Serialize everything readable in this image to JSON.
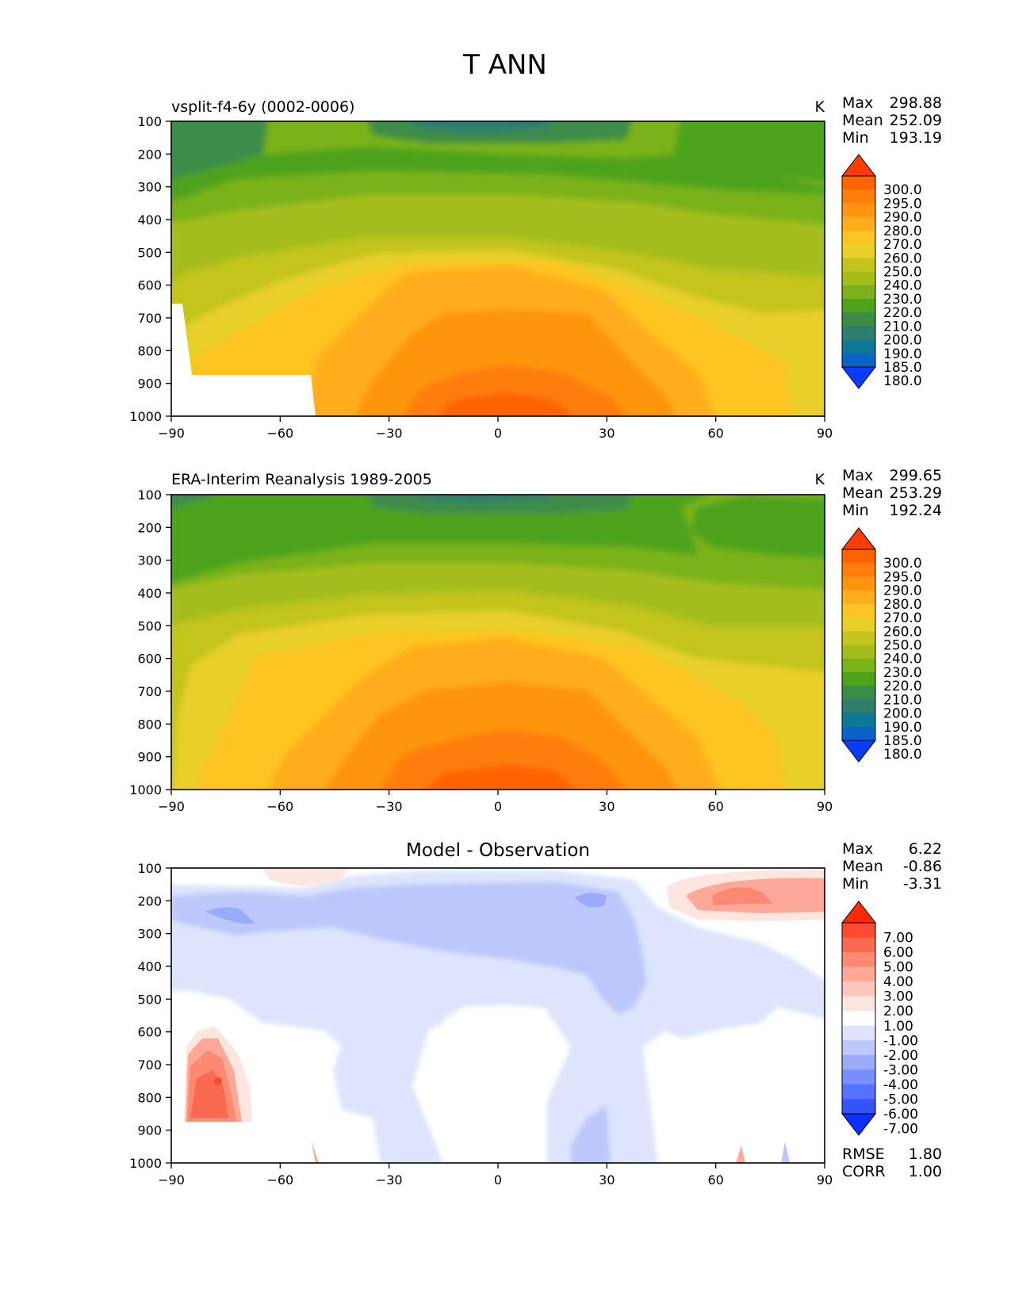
{
  "figure_title": "T ANN",
  "chart_data": [
    {
      "type": "heatmap",
      "title": "vsplit-f4-6y (0002-0006)",
      "units": "K",
      "stats": [
        {
          "label": "Max",
          "value": "298.88"
        },
        {
          "label": "Mean",
          "value": "252.09"
        },
        {
          "label": "Min",
          "value": "193.19"
        }
      ],
      "x_ticks": [
        "−90",
        "−60",
        "−30",
        "0",
        "30",
        "60",
        "90"
      ],
      "y_ticks": [
        "100",
        "200",
        "300",
        "400",
        "500",
        "600",
        "700",
        "800",
        "900",
        "1000"
      ],
      "xlim": [
        -90,
        90
      ],
      "ylim": [
        1000,
        100
      ],
      "colorbar_levels": [
        "300.0",
        "295.0",
        "290.0",
        "280.0",
        "270.0",
        "260.0",
        "250.0",
        "240.0",
        "230.0",
        "220.0",
        "210.0",
        "200.0",
        "190.0",
        "185.0",
        "180.0"
      ],
      "colorbar_colors": [
        "#ff3d00",
        "#ff6300",
        "#ff7d0a",
        "#ff9410",
        "#ffad1a",
        "#fdc423",
        "#e8cf2a",
        "#c3c41e",
        "#a4bd1a",
        "#7bb21a",
        "#4da31a",
        "#3c8c48",
        "#2e7e70",
        "#0e7896",
        "#0a64c8",
        "#0a3cff"
      ]
    },
    {
      "type": "heatmap",
      "title": "ERA-Interim Reanalysis 1989-2005",
      "units": "K",
      "stats": [
        {
          "label": "Max",
          "value": "299.65"
        },
        {
          "label": "Mean",
          "value": "253.29"
        },
        {
          "label": "Min",
          "value": "192.24"
        }
      ],
      "x_ticks": [
        "−90",
        "−60",
        "−30",
        "0",
        "30",
        "60",
        "90"
      ],
      "y_ticks": [
        "100",
        "200",
        "300",
        "400",
        "500",
        "600",
        "700",
        "800",
        "900",
        "1000"
      ],
      "xlim": [
        -90,
        90
      ],
      "ylim": [
        1000,
        100
      ],
      "colorbar_levels": [
        "300.0",
        "295.0",
        "290.0",
        "280.0",
        "270.0",
        "260.0",
        "250.0",
        "240.0",
        "230.0",
        "220.0",
        "210.0",
        "200.0",
        "190.0",
        "185.0",
        "180.0"
      ],
      "colorbar_colors": [
        "#ff3d00",
        "#ff6300",
        "#ff7d0a",
        "#ff9410",
        "#ffad1a",
        "#fdc423",
        "#e8cf2a",
        "#c3c41e",
        "#a4bd1a",
        "#7bb21a",
        "#4da31a",
        "#3c8c48",
        "#2e7e70",
        "#0e7896",
        "#0a64c8",
        "#0a3cff"
      ]
    },
    {
      "type": "heatmap",
      "title": "Model - Observation",
      "units": "",
      "stats": [
        {
          "label": "Max",
          "value": "6.22"
        },
        {
          "label": "Mean",
          "value": "-0.86"
        },
        {
          "label": "Min",
          "value": "-3.31"
        }
      ],
      "bottom_stats": [
        {
          "label": "RMSE",
          "value": "1.80"
        },
        {
          "label": "CORR",
          "value": "1.00"
        }
      ],
      "x_ticks": [
        "−90",
        "−60",
        "−30",
        "0",
        "30",
        "60",
        "90"
      ],
      "y_ticks": [
        "100",
        "200",
        "300",
        "400",
        "500",
        "600",
        "700",
        "800",
        "900",
        "1000"
      ],
      "xlim": [
        -90,
        90
      ],
      "ylim": [
        1000,
        100
      ],
      "colorbar_levels": [
        "7.00",
        "6.00",
        "5.00",
        "4.00",
        "3.00",
        "2.00",
        "1.00",
        "-1.00",
        "-2.00",
        "-3.00",
        "-4.00",
        "-5.00",
        "-6.00",
        "-7.00"
      ],
      "colorbar_colors": [
        "#ff2a00",
        "#fb4a30",
        "#fa6a50",
        "#fc8a72",
        "#fda898",
        "#fec6bb",
        "#fee6e0",
        "#ffffff",
        "#dde4fb",
        "#bcc8fb",
        "#9aabfb",
        "#788efd",
        "#5670ff",
        "#3452ff",
        "#0a32ff"
      ]
    }
  ]
}
